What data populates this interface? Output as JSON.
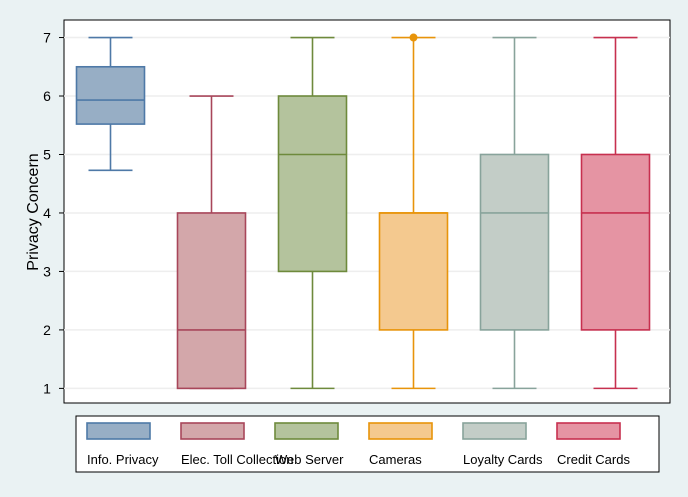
{
  "chart_data": {
    "type": "box",
    "title": "",
    "ylabel": "Privacy Concern",
    "xlabel": "",
    "ylim": [
      0.75,
      7.3
    ],
    "yticks": [
      1,
      2,
      3,
      4,
      5,
      6,
      7
    ],
    "grid": true,
    "legend_position": "bottom",
    "series": [
      {
        "name": "Info. Privacy",
        "color": "#4e79a7",
        "fill": "#97aec5",
        "whisker_low": 4.73,
        "q1": 5.52,
        "median": 5.93,
        "q3": 6.5,
        "whisker_high": 7,
        "outliers": []
      },
      {
        "name": "Elec. Toll Collection",
        "color": "#a8465a",
        "fill": "#d3a7aa",
        "whisker_low": 1,
        "q1": 1,
        "median": 2,
        "q3": 4,
        "whisker_high": 6,
        "outliers": []
      },
      {
        "name": "Web Server",
        "color": "#6e8a3c",
        "fill": "#b4c39d",
        "whisker_low": 1,
        "q1": 3,
        "median": 5,
        "q3": 6,
        "whisker_high": 7,
        "outliers": []
      },
      {
        "name": "Cameras",
        "color": "#e8940a",
        "fill": "#f4c98f",
        "whisker_low": 1,
        "q1": 2,
        "median": 4,
        "q3": 4,
        "whisker_high": 7,
        "outliers": [
          7
        ]
      },
      {
        "name": "Loyalty Cards",
        "color": "#88a39b",
        "fill": "#c3cdc7",
        "whisker_low": 1,
        "q1": 2,
        "median": 4,
        "q3": 5,
        "whisker_high": 7,
        "outliers": []
      },
      {
        "name": "Credit Cards",
        "color": "#c7304f",
        "fill": "#e594a3",
        "whisker_low": 1,
        "q1": 2,
        "median": 4,
        "q3": 5,
        "whisker_high": 7,
        "outliers": []
      }
    ]
  }
}
